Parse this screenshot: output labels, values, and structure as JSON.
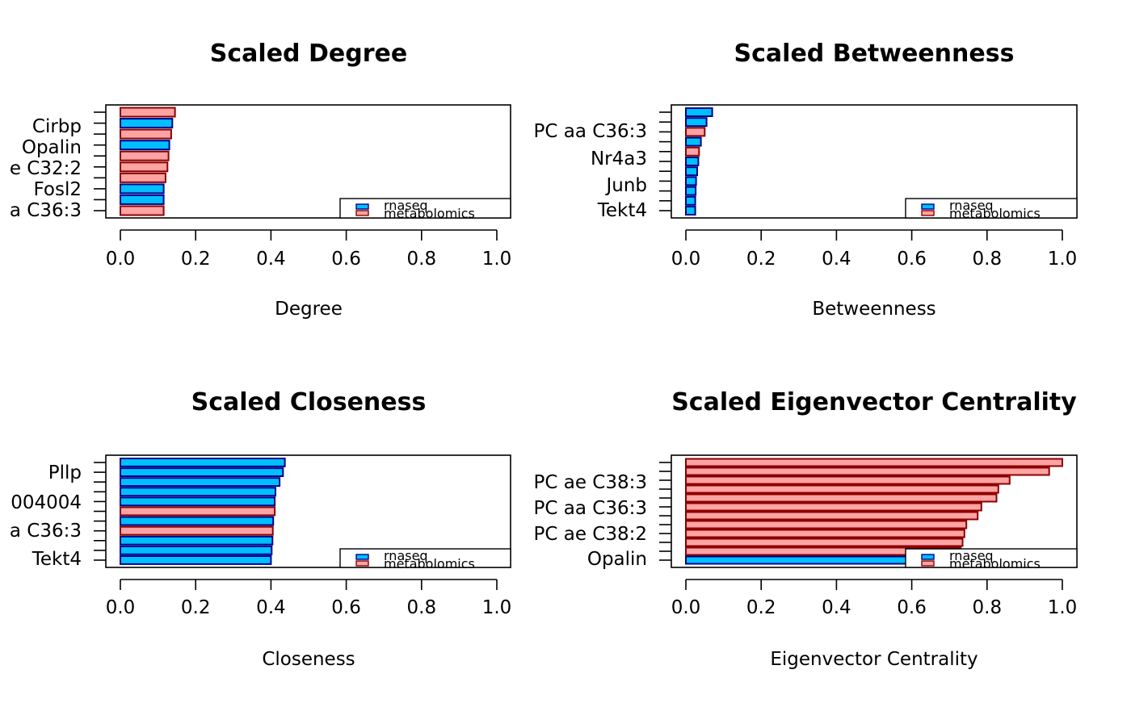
{
  "colors": {
    "rnaseq_fill": "#00BFFF",
    "rnaseq_border": "#00008B",
    "metabolomics_fill": "#FFA3A3",
    "metabolomics_border": "#8B0000"
  },
  "legend": {
    "placement": "bottom-right",
    "entries": [
      "rnaseq",
      "metabolomics"
    ]
  },
  "chart_data": [
    {
      "type": "bar",
      "orientation": "horizontal",
      "title": "Scaled Degree",
      "xlabel": "Degree",
      "xlim": [
        0,
        1
      ],
      "xticks": [
        "0.0",
        "0.2",
        "0.4",
        "0.6",
        "0.8",
        "1.0"
      ],
      "ytick_labels": [
        "a C36:3",
        "Fosl2",
        "e C32:2",
        "Opalin",
        "Cirbp"
      ],
      "values_bottom_to_top": [
        0.115,
        0.115,
        0.115,
        0.12,
        0.125,
        0.128,
        0.13,
        0.135,
        0.138,
        0.145
      ],
      "groups_bottom_to_top": [
        "metabolomics",
        "rnaseq",
        "rnaseq",
        "metabolomics",
        "metabolomics",
        "metabolomics",
        "rnaseq",
        "metabolomics",
        "rnaseq",
        "metabolomics"
      ]
    },
    {
      "type": "bar",
      "orientation": "horizontal",
      "title": "Scaled Betweenness",
      "xlabel": "Betweenness",
      "xlim": [
        0,
        1
      ],
      "xticks": [
        "0.0",
        "0.2",
        "0.4",
        "0.6",
        "0.8",
        "1.0"
      ],
      "ytick_labels": [
        "Tekt4",
        "Junb",
        "Nr4a3",
        "PC aa C36:3"
      ],
      "values_bottom_to_top": [
        0.025,
        0.025,
        0.026,
        0.027,
        0.03,
        0.033,
        0.035,
        0.04,
        0.05,
        0.055,
        0.07
      ],
      "groups_bottom_to_top": [
        "rnaseq",
        "rnaseq",
        "rnaseq",
        "rnaseq",
        "rnaseq",
        "rnaseq",
        "metabolomics",
        "rnaseq",
        "metabolomics",
        "rnaseq",
        "rnaseq"
      ]
    },
    {
      "type": "bar",
      "orientation": "horizontal",
      "title": "Scaled Closeness",
      "xlabel": "Closeness",
      "xlim": [
        0,
        1
      ],
      "xticks": [
        "0.0",
        "0.2",
        "0.4",
        "0.6",
        "0.8",
        "1.0"
      ],
      "ytick_labels": [
        "Tekt4",
        "a C36:3",
        "004004",
        "Pllp"
      ],
      "values_bottom_to_top": [
        0.4,
        0.402,
        0.404,
        0.405,
        0.406,
        0.41,
        0.41,
        0.412,
        0.423,
        0.432,
        0.437
      ],
      "groups_bottom_to_top": [
        "rnaseq",
        "rnaseq",
        "rnaseq",
        "metabolomics",
        "rnaseq",
        "metabolomics",
        "rnaseq",
        "rnaseq",
        "rnaseq",
        "rnaseq",
        "rnaseq"
      ]
    },
    {
      "type": "bar",
      "orientation": "horizontal",
      "title": "Scaled Eigenvector Centrality",
      "xlabel": "Eigenvector Centrality",
      "xlim": [
        0,
        1
      ],
      "xticks": [
        "0.0",
        "0.2",
        "0.4",
        "0.6",
        "0.8",
        "1.0"
      ],
      "ytick_labels": [
        "Opalin",
        "PC ae C38:2",
        "PC aa C36:3",
        "PC ae C38:3"
      ],
      "values_bottom_to_top": [
        0.62,
        0.73,
        0.735,
        0.74,
        0.745,
        0.775,
        0.785,
        0.825,
        0.83,
        0.86,
        0.965,
        1.0
      ],
      "groups_bottom_to_top": [
        "rnaseq",
        "metabolomics",
        "metabolomics",
        "metabolomics",
        "metabolomics",
        "metabolomics",
        "metabolomics",
        "metabolomics",
        "metabolomics",
        "metabolomics",
        "metabolomics",
        "metabolomics"
      ]
    }
  ]
}
